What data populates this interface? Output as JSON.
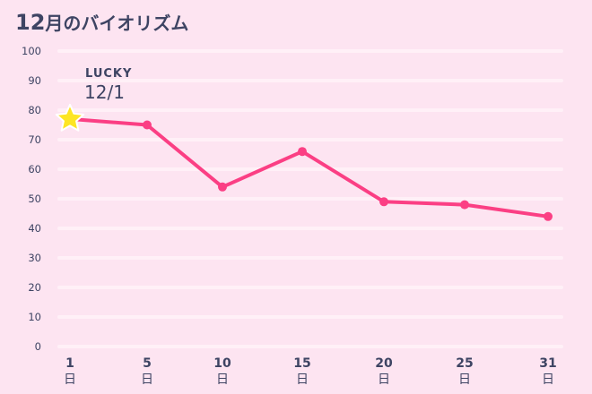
{
  "title": {
    "month_num": "12",
    "text": "月のバイオリズム"
  },
  "annotation": {
    "label": "LUCKY",
    "date": "12/1"
  },
  "colors": {
    "background": "#fde4f1",
    "line": "#fb3f84",
    "grid": "#fff0f7",
    "star": "#fde524",
    "text": "#3e4463"
  },
  "chart_data": {
    "type": "line",
    "title": "12月のバイオリズム",
    "xlabel": "",
    "ylabel": "",
    "ylim": [
      0,
      100
    ],
    "yticks": [
      0,
      10,
      20,
      30,
      40,
      50,
      60,
      70,
      80,
      90,
      100
    ],
    "categories": [
      "1日",
      "5日",
      "10日",
      "15日",
      "20日",
      "25日",
      "31日"
    ],
    "x": [
      1,
      5,
      10,
      15,
      20,
      25,
      31
    ],
    "series": [
      {
        "name": "バイオリズム",
        "values": [
          77,
          75,
          54,
          66,
          49,
          48,
          44
        ]
      }
    ],
    "grid": true,
    "legend": "none",
    "annotations": [
      {
        "x": 1,
        "text": "LUCKY 12/1",
        "marker": "star"
      }
    ]
  },
  "axis": {
    "y_labels": [
      "100",
      "90",
      "80",
      "70",
      "60",
      "50",
      "40",
      "30",
      "20",
      "10",
      "0"
    ],
    "x_labels": [
      "1",
      "5",
      "10",
      "15",
      "20",
      "25",
      "31"
    ],
    "x_unit": "日"
  }
}
